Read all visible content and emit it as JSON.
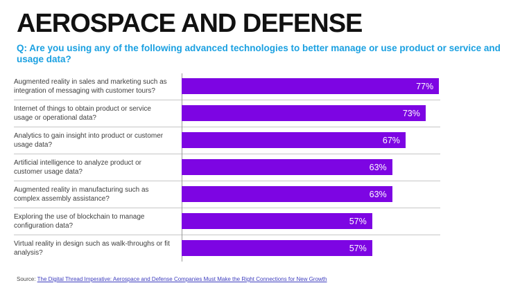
{
  "title": "AEROSPACE AND DEFENSE",
  "question": "Q: Are you using any of the following advanced technologies to better manage or use product or service and usage data?",
  "source": {
    "prefix": "Source:",
    "link_text": "The Digital Thread Imperative: Aerospace and Defense Companies Must Make the Right Connections for New Growth"
  },
  "colors": {
    "title": "#111111",
    "question": "#1aa0e1",
    "bar": "#7d05e3",
    "bar_value_text": "#ffffff",
    "category_label": "#3d3d3d",
    "separator": "#c6c6c6",
    "axis": "#9a9a9a",
    "source_link": "#3c3cbe"
  },
  "chart_data": {
    "type": "bar",
    "orientation": "horizontal",
    "title": "AEROSPACE AND DEFENSE",
    "subtitle": "Q: Are you using any of the following advanced technologies to better manage or use product or service and usage data?",
    "categories": [
      "Augmented reality in sales and marketing such as integration of messaging with customer tours?",
      "Internet of things to obtain product or service usage or operational data?",
      "Analytics to gain insight into product or customer usage data?",
      "Artificial intelligence to analyze product or customer usage data?",
      "Augmented reality in manufacturing such as complex assembly assistance?",
      "Exploring the use of blockchain to manage configuration data?",
      "Virtual reality in design such as walk-throughs or fit analysis?"
    ],
    "values": [
      77,
      73,
      67,
      63,
      63,
      57,
      57
    ],
    "value_labels": [
      "77%",
      "73%",
      "67%",
      "63%",
      "63%",
      "57%",
      "57%"
    ],
    "value_suffix": "%",
    "xlabel": "",
    "ylabel": "",
    "xlim": [
      0,
      77.5
    ],
    "grid": false,
    "legend": false,
    "data_labels_position": "inside-end",
    "bar_color": "#7d05e3"
  }
}
